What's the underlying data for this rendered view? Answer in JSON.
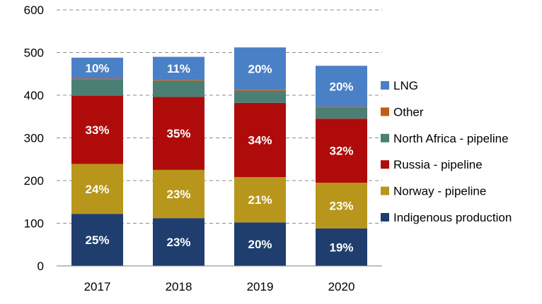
{
  "chart_data": {
    "type": "bar",
    "stacked": true,
    "title": "",
    "xlabel": "",
    "ylabel": "",
    "ylim": [
      0,
      600
    ],
    "yticks": [
      0,
      100,
      200,
      300,
      400,
      500,
      600
    ],
    "grid": true,
    "legend_position": "right",
    "categories": [
      "2017",
      "2018",
      "2019",
      "2020"
    ],
    "series": [
      {
        "name": "Indigenous production",
        "color": "#1f3e6e",
        "values": [
          122,
          112,
          102,
          88
        ],
        "labels": [
          "25%",
          "23%",
          "20%",
          "19%"
        ]
      },
      {
        "name": "Norway - pipeline",
        "color": "#b8961b",
        "values": [
          117,
          113,
          106,
          107
        ],
        "labels": [
          "24%",
          "23%",
          "21%",
          "23%"
        ]
      },
      {
        "name": "Russia - pipeline",
        "color": "#b00b0b",
        "values": [
          160,
          171,
          174,
          150
        ],
        "labels": [
          "33%",
          "35%",
          "34%",
          "32%"
        ]
      },
      {
        "name": "North Africa - pipeline",
        "color": "#4b7f74",
        "values": [
          38,
          38,
          28,
          26
        ],
        "labels": [
          "",
          "",
          "",
          ""
        ]
      },
      {
        "name": "Other",
        "color": "#c55a11",
        "values": [
          2,
          2,
          2,
          2
        ],
        "labels": [
          "",
          "",
          "",
          ""
        ]
      },
      {
        "name": "LNG",
        "color": "#4a80c6",
        "values": [
          49,
          54,
          100,
          96
        ],
        "labels": [
          "10%",
          "11%",
          "20%",
          "20%"
        ]
      }
    ]
  }
}
